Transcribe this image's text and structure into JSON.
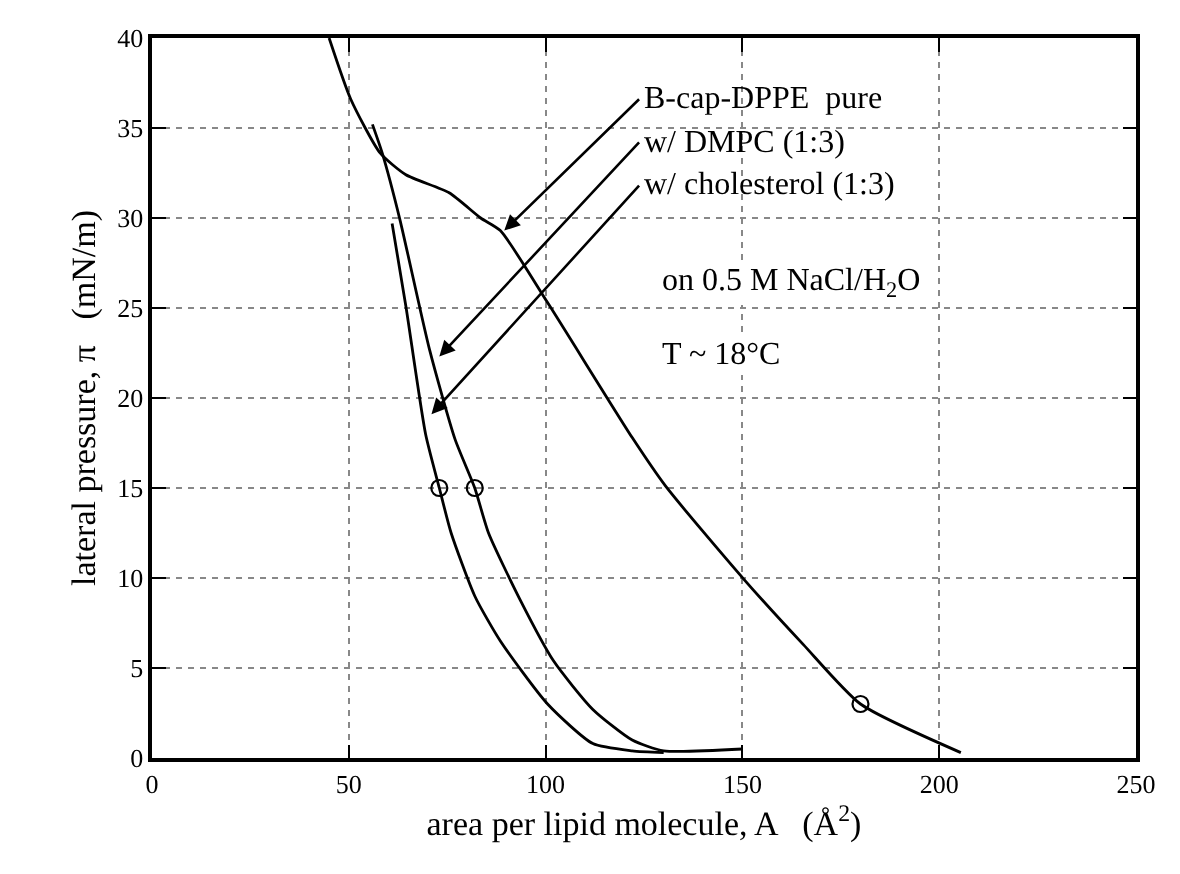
{
  "chart_data": {
    "type": "line",
    "xlabel": "area per lipid molecule, A   (Å$^{2}$)",
    "ylabel": "lateral pressure, π   (mN/m)",
    "xlim": [
      0,
      250
    ],
    "xticks": [
      0,
      50,
      100,
      150,
      200,
      250
    ],
    "ylim": [
      0,
      40
    ],
    "yticks": [
      0,
      5,
      10,
      15,
      20,
      25,
      30,
      35,
      40
    ],
    "grid": true,
    "line_style": "solid",
    "series": [
      {
        "color": "#000000",
        "marker": "none",
        "x": [
          45,
          50.5,
          58,
          64.5,
          75.5,
          83.5,
          88.5,
          100.5,
          122,
          130.5,
          150.5,
          165.5,
          180,
          205.5
        ],
        "values": [
          40,
          36.6,
          33.6,
          32.4,
          31.4,
          30,
          29.3,
          25.3,
          17.8,
          15.1,
          9.9,
          6.3,
          3,
          0.3
        ]
      },
      {
        "color": "#000000",
        "marker": "none",
        "x": [
          56,
          58.5,
          63,
          70.5,
          77,
          82,
          85.5,
          93.5,
          102,
          112,
          122,
          130,
          150
        ],
        "values": [
          35.2,
          33.6,
          29.9,
          22.7,
          17.7,
          15,
          12.5,
          8.8,
          5.4,
          2.7,
          1.0,
          0.4,
          0.5
        ]
      },
      {
        "color": "#000000",
        "marker": "none",
        "x": [
          61,
          64.5,
          69.5,
          73,
          76,
          82,
          88.5,
          100.5,
          112,
          122,
          130
        ],
        "values": [
          29.7,
          25.1,
          18,
          15,
          12.5,
          9,
          6.5,
          3.0,
          0.8,
          0.4,
          0.3
        ]
      },
      {
        "type": "scatter",
        "color": "#000000",
        "marker": "circle",
        "x": [
          73,
          82,
          180
        ],
        "values": [
          15,
          15,
          3
        ]
      }
    ],
    "annotations": [
      {
        "text": "B-cap-DPPE  pure",
        "x": 89.5,
        "y": 29.3
      },
      {
        "text": "w/ DMPC (1:3)",
        "x": 73,
        "y": 22.3
      },
      {
        "text": "w/ cholesterol (1:3)",
        "x": 71,
        "y": 19.1
      },
      "on 0.5 M NaCl/H$_{2}$O",
      "T ~ 18°C"
    ]
  }
}
